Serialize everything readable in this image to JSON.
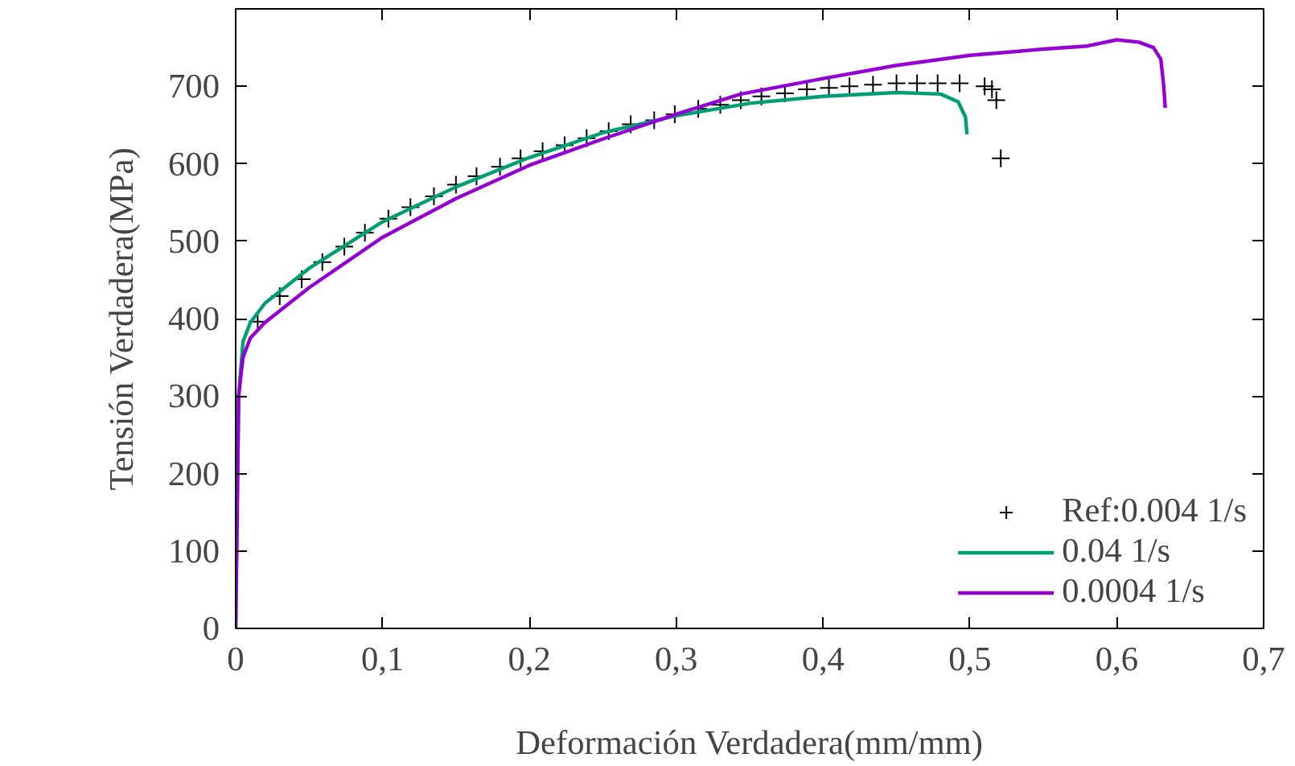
{
  "chart_data": {
    "type": "line",
    "xlabel": "Deformación Verdadera(mm/mm)",
    "ylabel": "Tensión Verdadera(MPa)",
    "xlim": [
      0,
      0.7
    ],
    "ylim": [
      0,
      800
    ],
    "xticks": [
      0,
      {
        "value": 0.1,
        "label": "0,1"
      },
      {
        "value": 0.2,
        "label": "0,2"
      },
      {
        "value": 0.3,
        "label": "0,3"
      },
      {
        "value": 0.4,
        "label": "0,4"
      },
      {
        "value": 0.5,
        "label": "0,5"
      },
      {
        "value": 0.6,
        "label": "0,6"
      },
      {
        "value": 0.7,
        "label": "0,7"
      }
    ],
    "yticks": [
      0,
      100,
      200,
      300,
      400,
      500,
      600,
      700
    ],
    "grid": false,
    "legend": "bottom right",
    "series": [
      {
        "name": "Ref:0.004 1/s",
        "type": "scatter",
        "marker": "cross",
        "color": "#000000",
        "x": [
          0.015,
          0.03,
          0.045,
          0.059,
          0.074,
          0.088,
          0.104,
          0.119,
          0.135,
          0.15,
          0.164,
          0.18,
          0.194,
          0.209,
          0.224,
          0.239,
          0.254,
          0.269,
          0.285,
          0.299,
          0.315,
          0.33,
          0.344,
          0.358,
          0.374,
          0.389,
          0.404,
          0.418,
          0.434,
          0.45,
          0.464,
          0.478,
          0.493,
          0.51,
          0.515,
          0.518,
          0.521
        ],
        "values": [
          396,
          429,
          451,
          473,
          493,
          511,
          529,
          544,
          558,
          573,
          584,
          596,
          607,
          616,
          624,
          633,
          642,
          651,
          656,
          664,
          671,
          676,
          682,
          687,
          691,
          696,
          698,
          700,
          702,
          704,
          704,
          704,
          704,
          700,
          696,
          682,
          607
        ]
      },
      {
        "name": "0.04 1/s",
        "color": "#009e73",
        "x": [
          0,
          0.002,
          0.005,
          0.01,
          0.02,
          0.05,
          0.1,
          0.15,
          0.2,
          0.25,
          0.3,
          0.35,
          0.4,
          0.45,
          0.48,
          0.492,
          0.497,
          0.498
        ],
        "values": [
          0,
          300,
          370,
          395,
          420,
          465,
          525,
          570,
          608,
          640,
          662,
          678,
          687,
          692,
          690,
          680,
          660,
          638
        ]
      },
      {
        "name": "0.0004 1/s",
        "color": "#9400d3",
        "x": [
          0,
          0.002,
          0.005,
          0.01,
          0.02,
          0.05,
          0.1,
          0.15,
          0.2,
          0.25,
          0.3,
          0.344,
          0.4,
          0.45,
          0.5,
          0.55,
          0.58,
          0.6,
          0.615,
          0.625,
          0.63,
          0.632,
          0.633
        ],
        "values": [
          0,
          300,
          350,
          375,
          395,
          440,
          505,
          555,
          598,
          632,
          664,
          690,
          710,
          727,
          740,
          748,
          752,
          760,
          757,
          750,
          735,
          700,
          672
        ]
      }
    ]
  }
}
